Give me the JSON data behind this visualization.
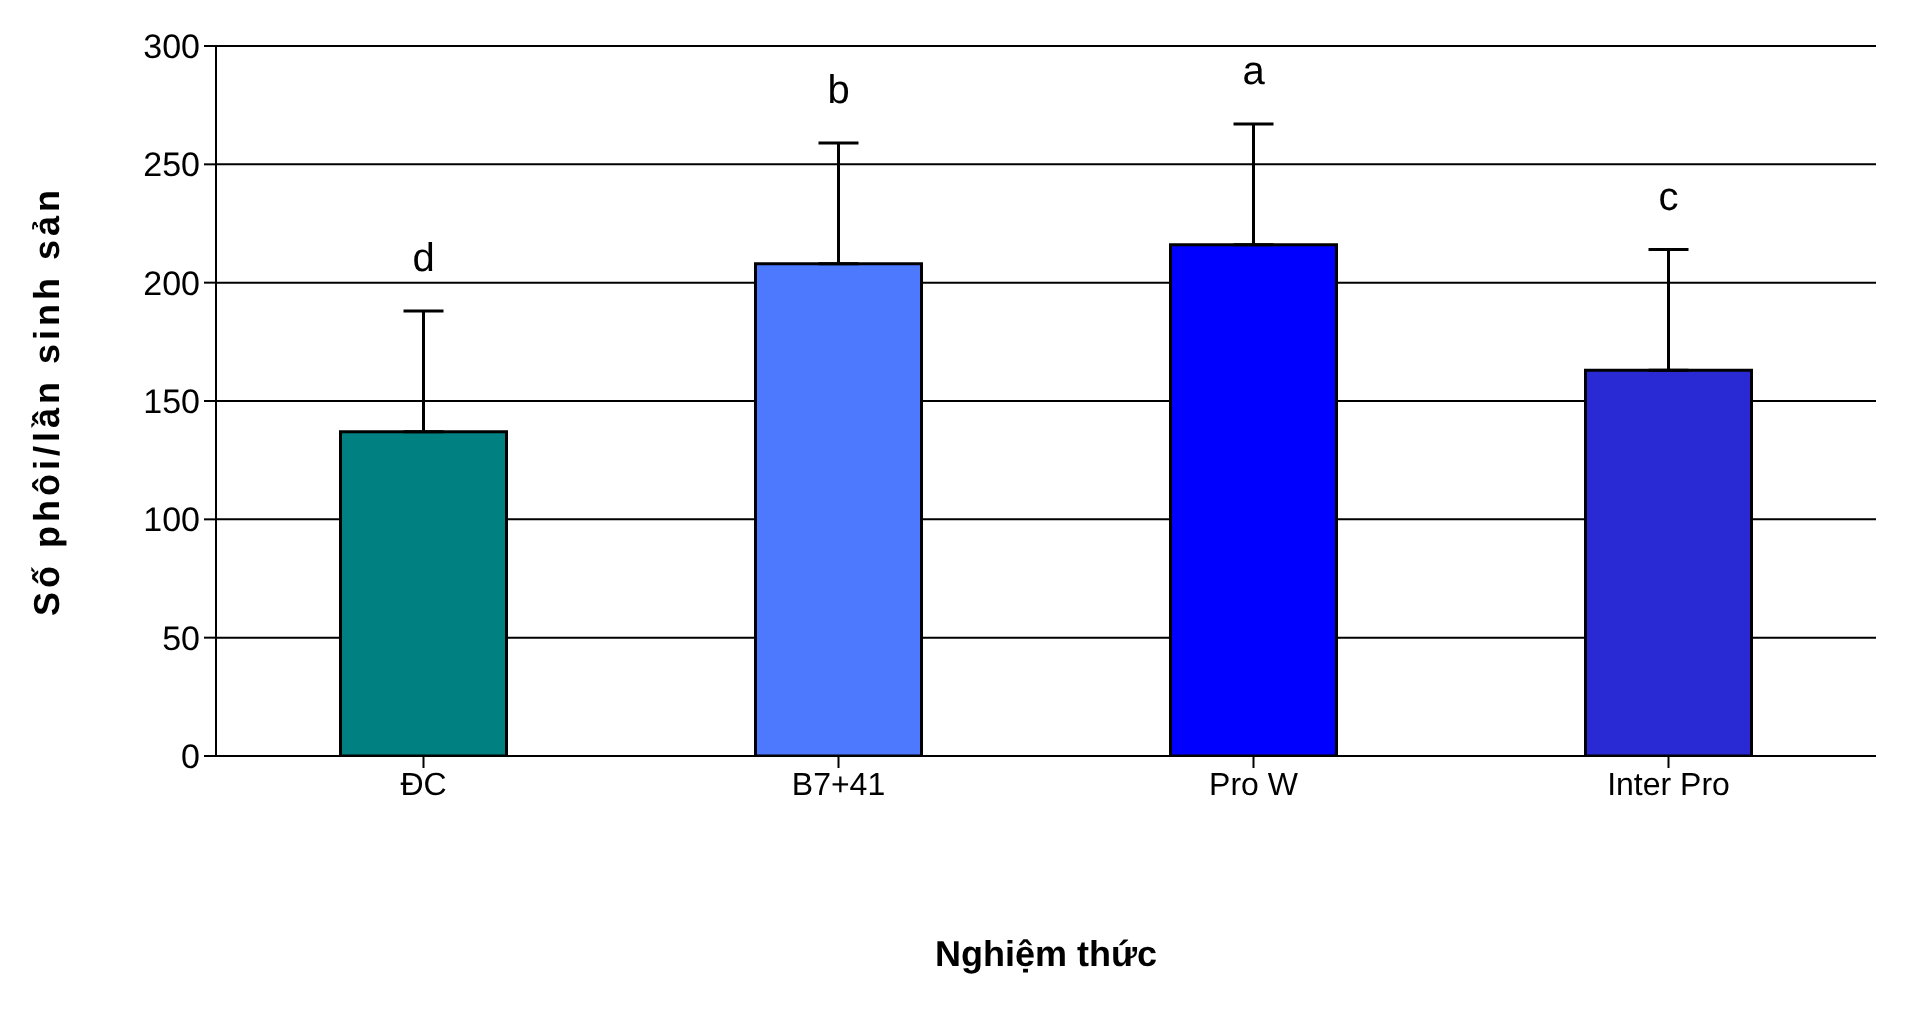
{
  "chart_data": {
    "type": "bar",
    "xlabel": "Nghiệm thức",
    "ylabel": "Số phôi/lần sinh sản",
    "categories": [
      "ĐC",
      "B7+41",
      "Pro W",
      "Inter Pro"
    ],
    "values": [
      137,
      208,
      216,
      163
    ],
    "colors": [
      "#008080",
      "#4d79ff",
      "#0000ff",
      "#2a2ad4"
    ],
    "errors": [
      [
        137,
        188
      ],
      [
        208,
        259
      ],
      [
        216,
        267
      ],
      [
        163,
        214
      ]
    ],
    "ylim": [
      0,
      300
    ],
    "yticks": [
      0,
      50,
      100,
      150,
      200,
      250,
      300
    ],
    "grid": "y",
    "legend": false,
    "annotations": [
      "d",
      "b",
      "a",
      "c"
    ]
  }
}
